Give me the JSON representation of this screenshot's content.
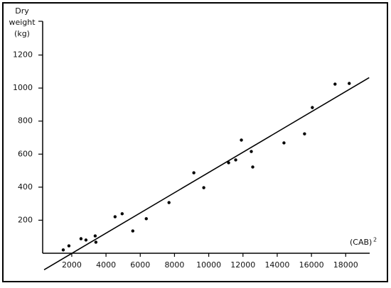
{
  "chart_data": {
    "type": "scatter",
    "y_label": [
      "Dry",
      "weight",
      "(kg)"
    ],
    "x_label": "(CAB)",
    "x_label_sup": "2",
    "x": [
      1503,
      1834,
      2539,
      2829,
      3368,
      3409,
      4529,
      4943,
      5565,
      6352,
      7679,
      9130,
      9710,
      11161,
      11575,
      11907,
      12487,
      12570,
      14394,
      15596,
      16052,
      17378,
      18207
    ],
    "y": [
      20,
      45,
      88,
      80,
      105,
      67,
      221,
      239,
      135,
      209,
      307,
      487,
      397,
      548,
      565,
      685,
      616,
      522,
      668,
      723,
      882,
      1024,
      1028
    ],
    "color": "#000000",
    "trendline": {
      "x": [
        384,
        19370
      ],
      "y": [
        -100,
        1063
      ]
    },
    "xlim": [
      300,
      19400
    ],
    "ylim": [
      0,
      1400
    ],
    "xticks": [
      2000,
      4000,
      6000,
      8000,
      10000,
      12000,
      14000,
      16000,
      18000
    ],
    "yticks": [
      200,
      400,
      600,
      800,
      1000,
      1200
    ]
  }
}
